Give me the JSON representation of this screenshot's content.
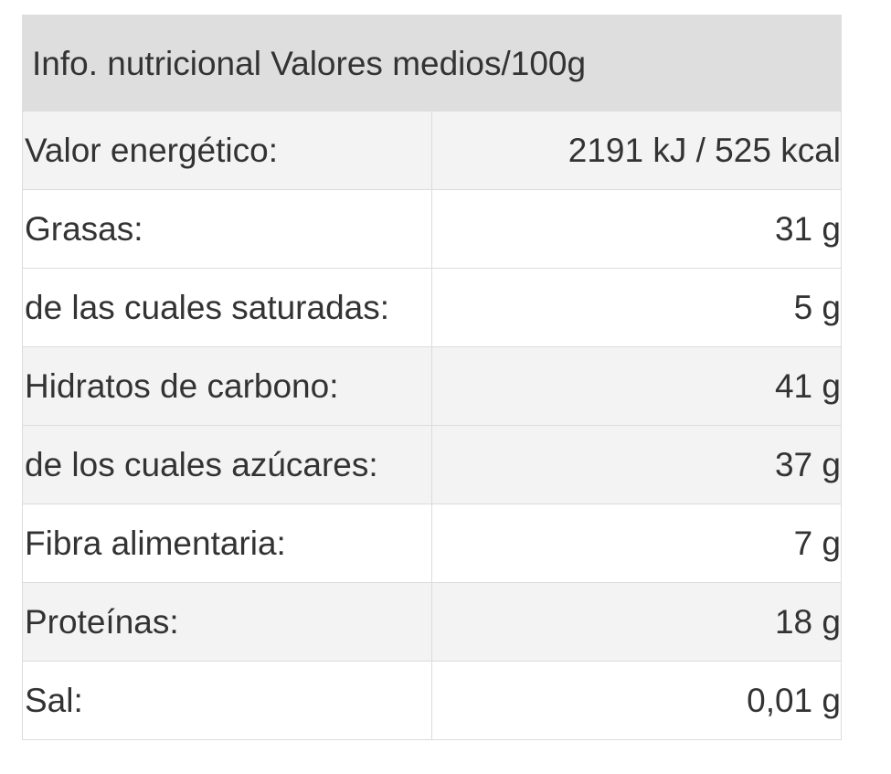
{
  "table": {
    "header": "Info. nutricional Valores medios/100g",
    "rows": [
      {
        "label": "Valor energético:",
        "value": "2191 kJ / 525 kcal"
      },
      {
        "label": "Grasas:",
        "value": "31 g"
      },
      {
        "label": "de las cuales saturadas:",
        "value": "5 g"
      },
      {
        "label": "Hidratos de carbono:",
        "value": "41 g"
      },
      {
        "label": "de los cuales azúcares:",
        "value": "37 g"
      },
      {
        "label": "Fibra alimentaria:",
        "value": "7 g"
      },
      {
        "label": "Proteínas:",
        "value": "18 g"
      },
      {
        "label": "Sal:",
        "value": "0,01 g"
      }
    ]
  },
  "colors": {
    "header_bg": "#dedede",
    "shaded_row_bg": "#f3f3f3",
    "plain_row_bg": "#ffffff",
    "border": "#dcdcdc",
    "text": "#333333"
  }
}
